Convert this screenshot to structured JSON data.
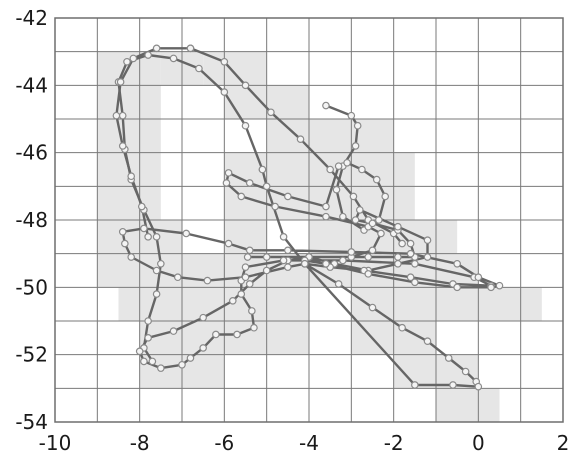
{
  "chart_data": {
    "type": "scatter",
    "title": "",
    "xlabel": "",
    "ylabel": "",
    "xlim": [
      -10,
      2
    ],
    "ylim": [
      -54,
      -42
    ],
    "grid": true,
    "x_ticks": [
      -10,
      -8,
      -6,
      -4,
      -2,
      0,
      2
    ],
    "y_ticks": [
      -42,
      -44,
      -46,
      -48,
      -50,
      -52,
      -54
    ],
    "x_tick_labels": [
      "-10",
      "-8",
      "-6",
      "-4",
      "-2",
      "0",
      "2"
    ],
    "y_tick_labels": [
      "-42",
      "-44",
      "-46",
      "-48",
      "-50",
      "-52",
      "-54"
    ],
    "shaded_cells": [
      [
        -9,
        -43
      ],
      [
        -8.5,
        -43
      ],
      [
        -7.5,
        -43
      ],
      [
        -6.5,
        -43
      ],
      [
        -6,
        -43
      ],
      [
        -9,
        -44
      ],
      [
        -8.5,
        -44
      ],
      [
        -6,
        -44
      ],
      [
        -5,
        -44
      ],
      [
        -9,
        -45
      ],
      [
        -8.5,
        -45
      ],
      [
        -5,
        -45
      ],
      [
        -4,
        -45
      ],
      [
        -3,
        -45
      ],
      [
        -9,
        -46
      ],
      [
        -8.5,
        -46
      ],
      [
        -6,
        -46
      ],
      [
        -5,
        -46
      ],
      [
        -4,
        -46
      ],
      [
        -3,
        -46
      ],
      [
        -2.5,
        -46
      ],
      [
        -9,
        -47
      ],
      [
        -8.5,
        -47
      ],
      [
        -6,
        -47
      ],
      [
        -5,
        -47
      ],
      [
        -4,
        -47
      ],
      [
        -3,
        -47
      ],
      [
        -2.5,
        -47
      ],
      [
        -9,
        -48
      ],
      [
        -8.5,
        -48
      ],
      [
        -8,
        -48
      ],
      [
        -6,
        -48
      ],
      [
        -4,
        -48
      ],
      [
        -3,
        -48
      ],
      [
        -2,
        -48
      ],
      [
        -1.5,
        -48
      ],
      [
        -9,
        -49
      ],
      [
        -8.5,
        -49
      ],
      [
        -8,
        -49
      ],
      [
        -7,
        -49
      ],
      [
        -6,
        -49
      ],
      [
        -5,
        -49
      ],
      [
        -4,
        -49
      ],
      [
        -3,
        -49
      ],
      [
        -2,
        -49
      ],
      [
        -1,
        -49
      ],
      [
        -8.5,
        -50
      ],
      [
        -8,
        -50
      ],
      [
        -7,
        -50
      ],
      [
        -6,
        -50
      ],
      [
        -5,
        -50
      ],
      [
        -3,
        -50
      ],
      [
        -2,
        -50
      ],
      [
        -1,
        -50
      ],
      [
        0,
        -50
      ],
      [
        0.5,
        -50
      ],
      [
        -8,
        -51
      ],
      [
        -7,
        -51
      ],
      [
        -6,
        -51
      ],
      [
        -5,
        -51
      ],
      [
        -3,
        -51
      ],
      [
        -2,
        -51
      ],
      [
        -8,
        -52
      ],
      [
        -7,
        -52
      ],
      [
        -2,
        -52
      ],
      [
        -1,
        -52
      ],
      [
        -1,
        -53
      ],
      [
        -0.5,
        -53
      ]
    ],
    "series": [
      {
        "points": [
          [
            -3.6,
            -44.6
          ],
          [
            -3.0,
            -44.9
          ],
          [
            -2.85,
            -45.2
          ],
          [
            -2.9,
            -45.8
          ],
          [
            -3.2,
            -46.4
          ],
          [
            -3.35,
            -47.1
          ],
          [
            -3.2,
            -47.9
          ],
          [
            -2.7,
            -48.3
          ],
          [
            -2.35,
            -48.0
          ],
          [
            -2.2,
            -47.3
          ],
          [
            -2.4,
            -46.8
          ],
          [
            -2.75,
            -46.5
          ],
          [
            -3.1,
            -46.3
          ],
          [
            -3.3,
            -46.4
          ],
          [
            -3.6,
            -47.6
          ],
          [
            -4.5,
            -47.3
          ],
          [
            -5.4,
            -46.9
          ],
          [
            -5.9,
            -46.6
          ],
          [
            -5.95,
            -46.9
          ],
          [
            -5.6,
            -47.3
          ],
          [
            -4.8,
            -47.6
          ],
          [
            -3.6,
            -47.9
          ],
          [
            -2.6,
            -48.2
          ],
          [
            -2.3,
            -48.4
          ],
          [
            -2.5,
            -48.9
          ],
          [
            -3.0,
            -49.1
          ],
          [
            -4.0,
            -49.1
          ],
          [
            -5.0,
            -49.1
          ],
          [
            -5.45,
            -49.1
          ],
          [
            -4.0,
            -49.1
          ],
          [
            -2.6,
            -49.1
          ],
          [
            -1.9,
            -49.1
          ],
          [
            -1.5,
            -49.1
          ],
          [
            -1.6,
            -48.7
          ],
          [
            -1.9,
            -48.3
          ],
          [
            -2.5,
            -48.1
          ],
          [
            -2.9,
            -48.0
          ],
          [
            -2.8,
            -47.7
          ],
          [
            -1.9,
            -48.2
          ],
          [
            -1.2,
            -48.6
          ],
          [
            -1.2,
            -49.1
          ],
          [
            -1.9,
            -49.3
          ],
          [
            -2.6,
            -49.5
          ],
          [
            -3.4,
            -49.3
          ],
          [
            -4.0,
            -49.1
          ],
          [
            -4.5,
            -49.2
          ],
          [
            -5.0,
            -49.5
          ],
          [
            -5.4,
            -49.9
          ],
          [
            -5.8,
            -50.4
          ],
          [
            -6.5,
            -50.9
          ],
          [
            -7.2,
            -51.3
          ],
          [
            -7.8,
            -51.5
          ],
          [
            -8.0,
            -51.9
          ],
          [
            -7.9,
            -52.2
          ],
          [
            -7.5,
            -52.4
          ],
          [
            -7.0,
            -52.3
          ],
          [
            -6.8,
            -52.1
          ],
          [
            -6.5,
            -51.8
          ],
          [
            -6.2,
            -51.4
          ],
          [
            -5.7,
            -51.4
          ],
          [
            -5.3,
            -51.2
          ],
          [
            -5.35,
            -50.7
          ],
          [
            -5.6,
            -50.2
          ],
          [
            -5.6,
            -49.8
          ],
          [
            -5.5,
            -49.4
          ],
          [
            -4.6,
            -49.2
          ],
          [
            -3.2,
            -49.2
          ],
          [
            -1.5,
            -49.3
          ],
          [
            -0.1,
            -49.7
          ],
          [
            0.3,
            -49.95
          ],
          [
            -0.6,
            -49.9
          ],
          [
            -1.6,
            -49.7
          ],
          [
            -2.7,
            -49.5
          ],
          [
            -3.5,
            -49.4
          ],
          [
            -4.1,
            -49.3
          ],
          [
            -4.5,
            -49.4
          ],
          [
            -5.5,
            -49.7
          ],
          [
            -6.4,
            -49.8
          ],
          [
            -7.1,
            -49.7
          ],
          [
            -7.6,
            -49.5
          ],
          [
            -8.2,
            -49.1
          ],
          [
            -8.35,
            -48.7
          ],
          [
            -8.4,
            -48.35
          ],
          [
            -7.9,
            -48.25
          ],
          [
            -6.9,
            -48.4
          ],
          [
            -5.9,
            -48.7
          ],
          [
            -5.4,
            -48.9
          ],
          [
            -4.5,
            -48.9
          ],
          [
            -3.0,
            -48.95
          ],
          [
            -1.6,
            -49.0
          ],
          [
            -0.5,
            -49.3
          ],
          [
            0.0,
            -49.7
          ],
          [
            0.5,
            -49.95
          ],
          [
            0.3,
            -50.0
          ],
          [
            -0.5,
            -50.0
          ],
          [
            -1.5,
            -49.85
          ],
          [
            -2.6,
            -49.6
          ],
          [
            -3.6,
            -49.3
          ],
          [
            -4.1,
            -49.2
          ],
          [
            -4.1,
            -49.3
          ],
          [
            -3.3,
            -49.9
          ],
          [
            -2.5,
            -50.6
          ],
          [
            -1.8,
            -51.2
          ],
          [
            -1.2,
            -51.6
          ],
          [
            -0.7,
            -52.1
          ],
          [
            -0.3,
            -52.5
          ],
          [
            -0.05,
            -52.8
          ],
          [
            0.0,
            -52.95
          ],
          [
            -0.6,
            -52.9
          ],
          [
            -1.5,
            -52.9
          ],
          [
            -4.1,
            -49.3
          ],
          [
            -4.6,
            -48.5
          ],
          [
            -5.0,
            -47.0
          ],
          [
            -5.1,
            -46.5
          ]
        ],
        "top_loop": [
          [
            -5.1,
            -46.5
          ],
          [
            -5.5,
            -45.2
          ],
          [
            -6.0,
            -44.2
          ],
          [
            -6.6,
            -43.5
          ],
          [
            -7.2,
            -43.2
          ],
          [
            -7.8,
            -43.1
          ],
          [
            -8.3,
            -43.3
          ],
          [
            -8.5,
            -43.9
          ],
          [
            -8.4,
            -44.9
          ],
          [
            -8.35,
            -45.9
          ],
          [
            -8.2,
            -46.8
          ],
          [
            -7.9,
            -47.7
          ],
          [
            -7.6,
            -48.5
          ],
          [
            -7.5,
            -49.3
          ],
          [
            -7.6,
            -50.2
          ],
          [
            -7.8,
            -51.0
          ],
          [
            -7.9,
            -51.8
          ],
          [
            -7.7,
            -52.2
          ]
        ]
      }
    ],
    "upper_path": [
      [
        -6.8,
        -42.9
      ],
      [
        -7.6,
        -42.9
      ],
      [
        -8.15,
        -43.2
      ],
      [
        -8.45,
        -43.9
      ],
      [
        -8.55,
        -44.9
      ],
      [
        -8.4,
        -45.8
      ],
      [
        -8.2,
        -46.7
      ],
      [
        -7.95,
        -47.6
      ],
      [
        -7.8,
        -48.5
      ],
      [
        -6.8,
        -42.9
      ],
      [
        -6.0,
        -43.3
      ],
      [
        -5.5,
        -44.0
      ],
      [
        -4.9,
        -44.8
      ],
      [
        -4.2,
        -45.6
      ],
      [
        -3.5,
        -46.5
      ],
      [
        -2.95,
        -47.3
      ],
      [
        -2.6,
        -48.0
      ],
      [
        -2.0,
        -48.4
      ],
      [
        -1.8,
        -48.7
      ]
    ]
  }
}
